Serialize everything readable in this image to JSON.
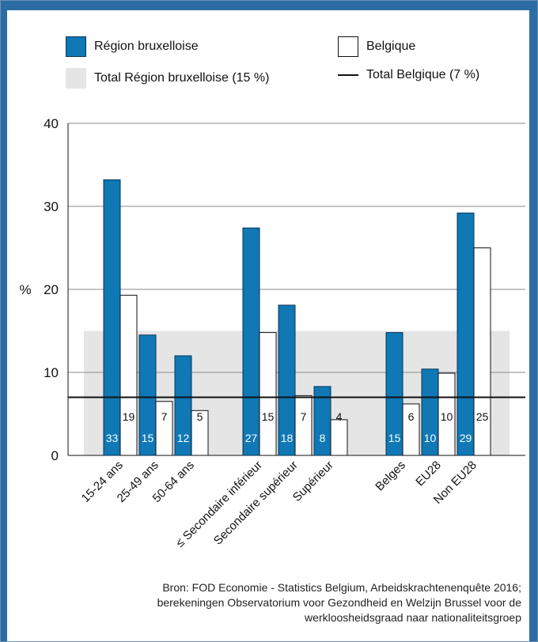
{
  "legend": {
    "region": "Région bruxelloise",
    "belgique": "Belgique",
    "total_region": "Total Région bruxelloise (15 %)",
    "total_belgique": "Total Belgique (7 %)"
  },
  "colors": {
    "region": "#0f78b5",
    "belgique": "#ffffff",
    "total_region_band": "#e5e5e5",
    "total_belgique_line": "#111111"
  },
  "chart_data": {
    "type": "bar",
    "ylabel": "%",
    "ylim": [
      0,
      40
    ],
    "yticks": [
      0,
      10,
      20,
      30,
      40
    ],
    "grid": true,
    "categories": [
      "15-24 ans",
      "25-49 ans",
      "50-64 ans",
      "≤ Secondaire inférieur",
      "Secondaire supérieur",
      "Supérieur",
      "Belges",
      "EU28",
      "Non EU28"
    ],
    "groups": [
      [
        0,
        1,
        2
      ],
      [
        3,
        4,
        5
      ],
      [
        6,
        7,
        8
      ]
    ],
    "series": [
      {
        "name": "Région bruxelloise",
        "values": [
          33.2,
          14.5,
          12.0,
          27.4,
          18.1,
          8.3,
          14.8,
          10.4,
          29.2
        ],
        "labels": [
          "33",
          "15",
          "12",
          "27",
          "18",
          "8",
          "15",
          "10",
          "29"
        ]
      },
      {
        "name": "Belgique",
        "values": [
          19.3,
          6.5,
          5.4,
          14.8,
          7.2,
          4.3,
          6.2,
          9.9,
          25.0
        ],
        "labels": [
          "19",
          "7",
          "5",
          "15",
          "7",
          "4",
          "6",
          "10",
          "25"
        ]
      }
    ],
    "reference": {
      "total_region": 15,
      "total_belgique": 7
    }
  },
  "source": "Bron: FOD Economie - Statistics Belgium, Arbeidskrachtenenquête 2016; berekeningen Observatorium voor Gezondheid en Welzijn Brussel voor de werkloosheidsgraad naar nationaliteitsgroep"
}
